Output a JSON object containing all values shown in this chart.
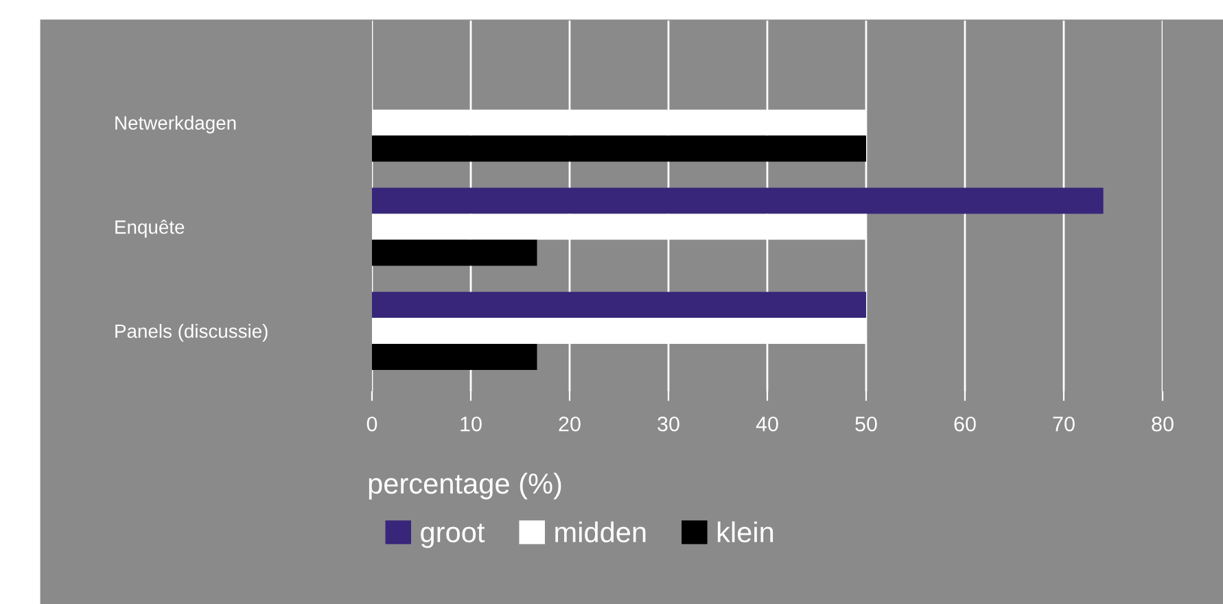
{
  "chart_data": {
    "type": "bar",
    "orientation": "horizontal",
    "categories": [
      "Netwerkdagen",
      "Enquête",
      "Panels (discussie)"
    ],
    "series": [
      {
        "name": "groot",
        "color": "#38267a",
        "values": [
          null,
          74,
          50
        ]
      },
      {
        "name": "midden",
        "color": "#ffffff",
        "values": [
          50,
          50,
          50
        ]
      },
      {
        "name": "klein",
        "color": "#000000",
        "values": [
          50,
          16.7,
          16.7
        ]
      }
    ],
    "xlabel": "percentage (%)",
    "xlim": [
      0,
      80
    ],
    "xticks": [
      0,
      10,
      20,
      30,
      40,
      50,
      60,
      70,
      80
    ],
    "grid": "x",
    "legend": "bottom"
  }
}
